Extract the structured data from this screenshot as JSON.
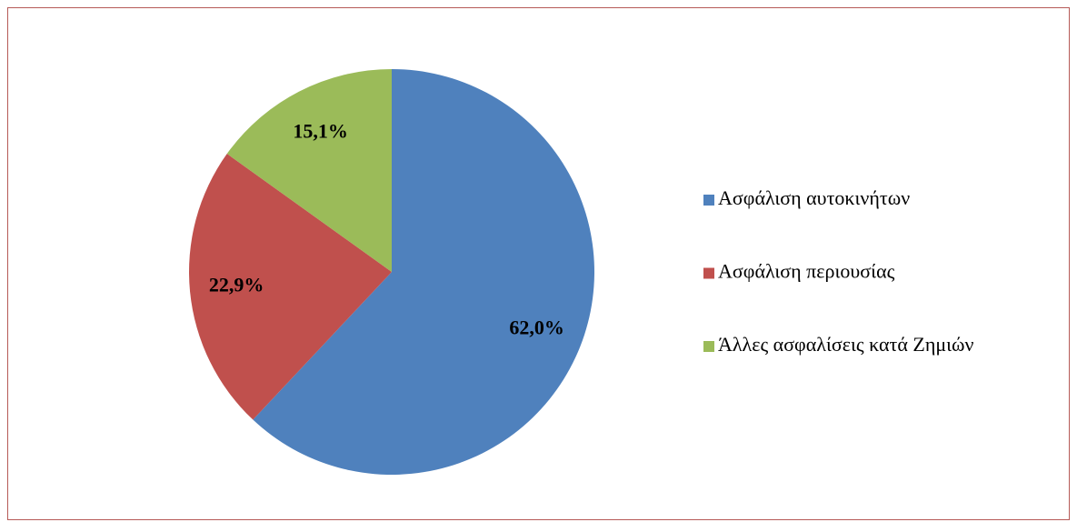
{
  "chart_data": {
    "type": "pie",
    "categories": [
      "Ασφάλιση αυτοκινήτων",
      "Ασφάλιση περιουσίας",
      "Άλλες ασφαλίσεις κατά Ζημιών"
    ],
    "values": [
      62.0,
      22.9,
      15.1
    ],
    "value_labels": [
      "62,0%",
      "22,9%",
      "15,1%"
    ],
    "colors": [
      "#4f81bd",
      "#c0504d",
      "#9bbb59"
    ],
    "legend": "right"
  }
}
